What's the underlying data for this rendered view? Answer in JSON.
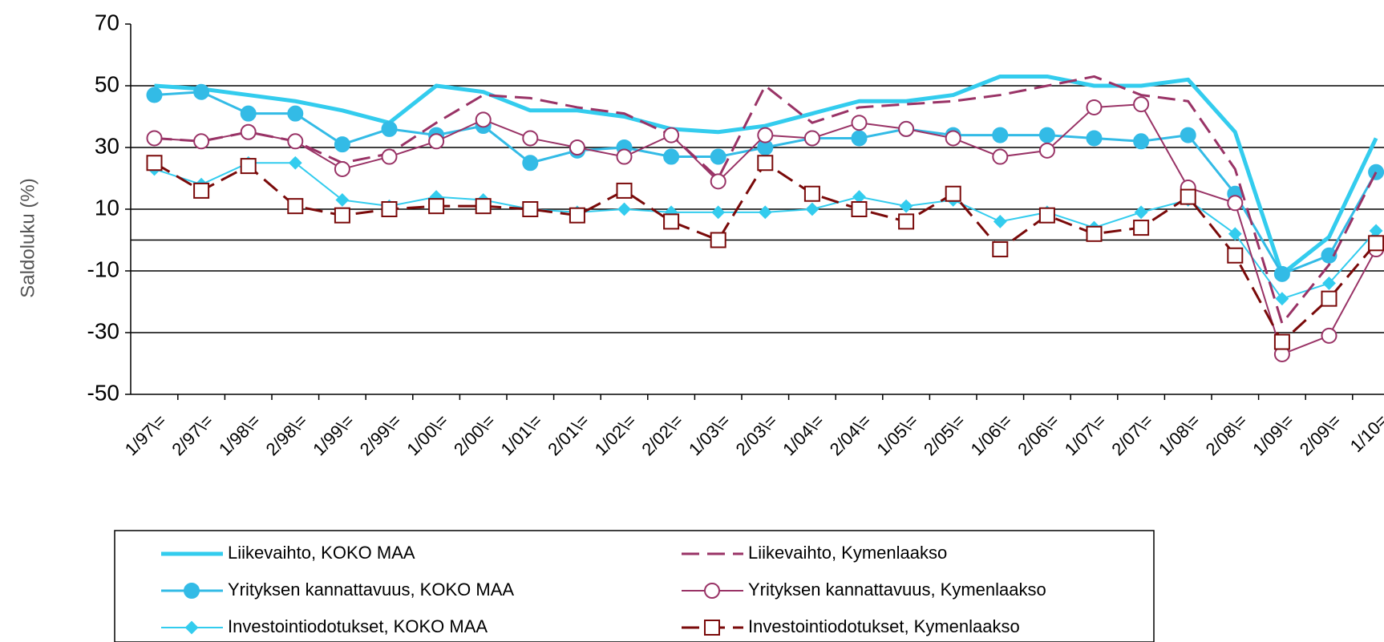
{
  "chart_data": {
    "type": "line",
    "y_label": "Saldoluku (%)",
    "categories": [
      "1/97\\=",
      "2/97\\=",
      "1/98\\=",
      "2/98\\=",
      "1/99\\=",
      "2/99\\=",
      "1/00\\=",
      "2/00\\=",
      "1/01\\=",
      "2/01\\=",
      "1/02\\=",
      "2/02\\=",
      "1/03\\=",
      "2/03\\=",
      "1/04\\=",
      "2/04\\=",
      "1/05\\=",
      "2/05\\=",
      "1/06\\=",
      "2/06\\=",
      "1/07\\=",
      "2/07\\=",
      "1/08\\=",
      "2/08\\=",
      "1/09\\=",
      "2/09\\=",
      "1/10="
    ],
    "ylim": [
      -50,
      70
    ],
    "yticks": [
      70,
      50,
      30,
      10,
      -10,
      -30,
      -50
    ],
    "grid": true,
    "legend": "bottom",
    "series": [
      {
        "name": "Liikevaihto, KOKO MAA",
        "color": "#33ccee",
        "width": 5,
        "dash": "solid",
        "marker": "none",
        "values": [
          50,
          49,
          47,
          45,
          42,
          38,
          50,
          48,
          42,
          42,
          40,
          36,
          35,
          37,
          41,
          45,
          45,
          47,
          53,
          53,
          50,
          50,
          52,
          35,
          -11,
          1,
          33
        ]
      },
      {
        "name": "Yrityksen kannattavuus, KOKO MAA",
        "color": "#33bbe6",
        "width": 3,
        "dash": "solid",
        "marker": "filled-circle",
        "values": [
          47,
          48,
          41,
          41,
          31,
          36,
          34,
          37,
          25,
          29,
          30,
          27,
          27,
          30,
          33,
          33,
          36,
          34,
          34,
          34,
          33,
          32,
          34,
          15,
          -11,
          -5,
          22
        ]
      },
      {
        "name": "Investointiodotukset, KOKO MAA",
        "color": "#33ccee",
        "width": 2,
        "dash": "solid",
        "marker": "diamond",
        "values": [
          23,
          18,
          25,
          25,
          13,
          11,
          14,
          13,
          10,
          9,
          10,
          9,
          9,
          9,
          10,
          14,
          11,
          13,
          6,
          9,
          4,
          9,
          13,
          2,
          -19,
          -14,
          3
        ]
      },
      {
        "name": "Liikevaihto, Kymenlaakso",
        "color": "#993366",
        "width": 3,
        "dash": "dashed",
        "marker": "none",
        "values": [
          33,
          32,
          35,
          32,
          25,
          28,
          38,
          47,
          46,
          43,
          41,
          34,
          20,
          50,
          38,
          43,
          44,
          45,
          47,
          50,
          53,
          47,
          45,
          23,
          -27,
          -8,
          22
        ]
      },
      {
        "name": "Yrityksen kannattavuus, Kymenlaakso",
        "color": "#993366",
        "width": 2,
        "dash": "solid",
        "marker": "open-circle",
        "values": [
          33,
          32,
          35,
          32,
          23,
          27,
          32,
          39,
          33,
          30,
          27,
          34,
          19,
          34,
          33,
          38,
          36,
          33,
          27,
          29,
          43,
          44,
          17,
          12,
          -37,
          -31,
          -3
        ]
      },
      {
        "name": "Investointiodotukset, Kymenlaakso",
        "color": "#7a0a0a",
        "width": 3,
        "dash": "dashed",
        "marker": "open-square",
        "values": [
          25,
          16,
          24,
          11,
          8,
          10,
          11,
          11,
          10,
          8,
          16,
          6,
          0,
          25,
          15,
          10,
          6,
          15,
          -3,
          8,
          2,
          4,
          14,
          -5,
          -33,
          -19,
          -1
        ]
      }
    ]
  }
}
